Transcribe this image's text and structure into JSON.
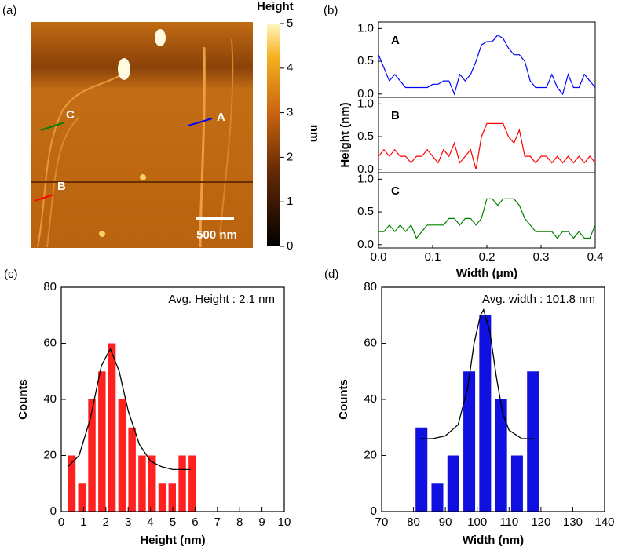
{
  "chart_data": [
    {
      "type": "image",
      "label": "(a)",
      "colorbar": {
        "title": "Height",
        "unit": "nm",
        "clim": [
          0,
          5
        ],
        "ticks": [
          0,
          1,
          2,
          3,
          4,
          5
        ]
      },
      "annotations": [
        "A",
        "B",
        "C"
      ],
      "scale_bar": "500 nm"
    },
    {
      "type": "line",
      "label": "(b)",
      "xlabel": "Width (μm)",
      "ylabel": "Height (nm)",
      "xlim": [
        0,
        0.4
      ],
      "xticks": [
        {
          "value": 0,
          "label": "0.0"
        },
        0.1,
        0.2,
        0.3,
        0.4
      ],
      "ylim": [
        -0.05,
        1.1
      ],
      "yticks": [
        {
          "value": 0,
          "label": "0.0"
        },
        0.5,
        {
          "value": 1,
          "label": "1.0"
        }
      ],
      "x": [
        0,
        0.01,
        0.02,
        0.03,
        0.04,
        0.05,
        0.06,
        0.07,
        0.08,
        0.09,
        0.1,
        0.11,
        0.12,
        0.13,
        0.14,
        0.15,
        0.16,
        0.17,
        0.18,
        0.19,
        0.2,
        0.21,
        0.22,
        0.23,
        0.24,
        0.25,
        0.26,
        0.27,
        0.28,
        0.29,
        0.3,
        0.31,
        0.32,
        0.33,
        0.34,
        0.35,
        0.36,
        0.37,
        0.38,
        0.39,
        0.4
      ],
      "series": [
        {
          "name": "A",
          "color": "#0000ff",
          "values": [
            0.6,
            0.4,
            0.2,
            0.3,
            0.2,
            0.1,
            0.1,
            0.1,
            0.1,
            0.1,
            0.15,
            0.15,
            0.2,
            0.2,
            0.0,
            0.3,
            0.2,
            0.3,
            0.5,
            0.75,
            0.8,
            0.8,
            0.9,
            0.85,
            0.7,
            0.6,
            0.6,
            0.5,
            0.2,
            0.1,
            0.1,
            0.1,
            0.3,
            0.1,
            0.0,
            0.3,
            0.1,
            0.1,
            0.3,
            0.2,
            0.1
          ]
        },
        {
          "name": "B",
          "color": "#ff0000",
          "values": [
            0.2,
            0.3,
            0.2,
            0.3,
            0.2,
            0.2,
            0.1,
            0.2,
            0.2,
            0.3,
            0.2,
            0.1,
            0.3,
            0.2,
            0.4,
            0.1,
            0.2,
            0.3,
            0.0,
            0.5,
            0.7,
            0.7,
            0.7,
            0.7,
            0.5,
            0.4,
            0.6,
            0.2,
            0.2,
            0.1,
            0.2,
            0.2,
            0.1,
            0.2,
            0.1,
            0.2,
            0.1,
            0.2,
            0.1,
            0.2,
            0.1
          ]
        },
        {
          "name": "C",
          "color": "#008000",
          "values": [
            0.2,
            0.2,
            0.3,
            0.2,
            0.3,
            0.2,
            0.3,
            0.1,
            0.2,
            0.3,
            0.3,
            0.3,
            0.3,
            0.4,
            0.4,
            0.3,
            0.4,
            0.4,
            0.3,
            0.4,
            0.7,
            0.7,
            0.6,
            0.7,
            0.7,
            0.7,
            0.6,
            0.4,
            0.3,
            0.2,
            0.2,
            0.2,
            0.2,
            0.1,
            0.2,
            0.2,
            0.1,
            0.2,
            0.1,
            0.1,
            0.3
          ]
        }
      ]
    },
    {
      "type": "histogram",
      "label": "(c)",
      "xlabel": "Height (nm)",
      "ylabel": "Counts",
      "annotation": "Avg. Height : 2.1 nm",
      "color": "#ff2020",
      "xlim": [
        0,
        10
      ],
      "xticks": [
        0,
        1,
        2,
        3,
        4,
        5,
        6,
        7,
        8,
        9,
        10
      ],
      "ylim": [
        0,
        80
      ],
      "yticks": [
        0,
        20,
        40,
        60,
        80
      ],
      "bins": [
        0.25,
        0.7,
        1.15,
        1.6,
        2.05,
        2.5,
        2.95,
        3.4,
        3.85,
        4.3,
        4.75,
        5.2,
        5.65,
        6.1
      ],
      "values": [
        20,
        10,
        40,
        50,
        60,
        40,
        30,
        20,
        20,
        10,
        10,
        20,
        20
      ],
      "fit": {
        "x": [
          0.3,
          0.8,
          1.3,
          1.8,
          2.2,
          2.6,
          3.0,
          3.5,
          4.0,
          4.5,
          5.0,
          5.5,
          5.8
        ],
        "values": [
          16,
          20,
          33,
          52,
          58,
          50,
          36,
          24,
          18,
          16,
          15,
          15,
          15
        ]
      }
    },
    {
      "type": "histogram",
      "label": "(d)",
      "xlabel": "Width (nm)",
      "ylabel": "Counts",
      "annotation": "Avg. width : 101.8 nm",
      "color": "#1010e0",
      "xlim": [
        70,
        140
      ],
      "xticks": [
        70,
        80,
        90,
        100,
        110,
        120,
        130,
        140
      ],
      "ylim": [
        0,
        80
      ],
      "yticks": [
        0,
        20,
        40,
        60,
        80
      ],
      "bins": [
        80,
        85,
        90,
        95,
        100,
        105,
        110,
        115,
        120
      ],
      "values": [
        30,
        10,
        20,
        50,
        70,
        40,
        20,
        50
      ],
      "fit": {
        "x": [
          82,
          86,
          90,
          94,
          97,
          99,
          101,
          102,
          104,
          106,
          108,
          110,
          114,
          118
        ],
        "values": [
          26,
          26,
          27,
          31,
          44,
          60,
          70,
          72,
          64,
          48,
          35,
          29,
          26,
          26
        ]
      }
    }
  ]
}
